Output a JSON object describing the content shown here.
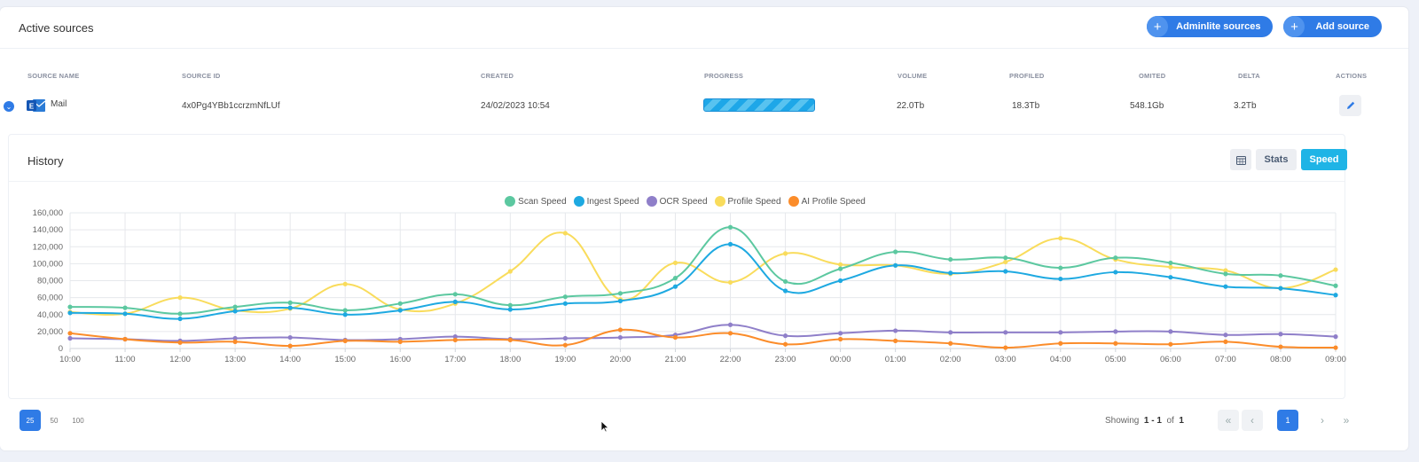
{
  "header": {
    "title": "Active sources",
    "adminlite_label": "Adminlite sources",
    "add_label": "Add source"
  },
  "table": {
    "columns": [
      "SOURCE NAME",
      "SOURCE ID",
      "CREATED",
      "PROGRESS",
      "VOLUME",
      "PROFILED",
      "OMITED",
      "DELTA",
      "ACTIONS"
    ],
    "rows": [
      {
        "name": "Mail",
        "id": "4x0Pg4YBb1ccrzmNfLUf",
        "created": "24/02/2023 10:54",
        "progress": 1.0,
        "volume": "22.0Tb",
        "profiled": "18.3Tb",
        "omited": "548.1Gb",
        "delta": "3.2Tb"
      }
    ]
  },
  "history": {
    "title": "History",
    "stats_label": "Stats",
    "speed_label": "Speed",
    "active_view": "Speed"
  },
  "chart_data": {
    "type": "line",
    "x": [
      "10:00",
      "11:00",
      "12:00",
      "13:00",
      "14:00",
      "15:00",
      "16:00",
      "17:00",
      "18:00",
      "19:00",
      "20:00",
      "21:00",
      "22:00",
      "23:00",
      "00:00",
      "01:00",
      "02:00",
      "03:00",
      "04:00",
      "05:00",
      "06:00",
      "07:00",
      "08:00",
      "09:00"
    ],
    "ylim": [
      0,
      160000
    ],
    "yticks": [
      "0",
      "20,000",
      "40,000",
      "60,000",
      "80,000",
      "100,000",
      "120,000",
      "140,000",
      "160,000"
    ],
    "grid": true,
    "legend_position": "top-center",
    "series": [
      {
        "name": "Scan Speed",
        "color": "#5cc8a0",
        "values": [
          49000,
          48000,
          41000,
          49000,
          54000,
          45000,
          53000,
          64000,
          51000,
          61000,
          65000,
          83000,
          143000,
          79000,
          94000,
          114000,
          105000,
          107000,
          95000,
          107000,
          101000,
          88000,
          86000,
          74000
        ]
      },
      {
        "name": "Ingest Speed",
        "color": "#1ea9e1",
        "values": [
          42000,
          41000,
          35000,
          44000,
          48000,
          40000,
          45000,
          55000,
          46000,
          53000,
          56000,
          73000,
          123000,
          68000,
          80000,
          98000,
          89000,
          91000,
          82000,
          90000,
          84000,
          73000,
          71000,
          63000
        ]
      },
      {
        "name": "OCR Speed",
        "color": "#8f7fc9",
        "values": [
          12000,
          11000,
          9000,
          12000,
          13000,
          10000,
          11000,
          14000,
          11000,
          12000,
          13000,
          16000,
          28000,
          15000,
          18000,
          21000,
          19000,
          19000,
          19000,
          20000,
          20000,
          16000,
          17000,
          14000
        ]
      },
      {
        "name": "Profile Speed",
        "color": "#f9dc5c",
        "values": [
          43000,
          41000,
          60000,
          45000,
          47000,
          76000,
          46000,
          53000,
          91000,
          136000,
          58000,
          101000,
          78000,
          112000,
          99000,
          98000,
          88000,
          102000,
          130000,
          105000,
          96000,
          92000,
          71000,
          93000
        ]
      },
      {
        "name": "AI Profile Speed",
        "color": "#fb8c2a",
        "values": [
          18000,
          11000,
          7000,
          8000,
          3000,
          9000,
          8000,
          10000,
          10000,
          4000,
          22000,
          13000,
          18000,
          5000,
          11000,
          9000,
          6000,
          1000,
          6000,
          6000,
          5000,
          8000,
          2000,
          1000
        ]
      }
    ]
  },
  "pagination": {
    "per_page": [
      "25",
      "50",
      "100"
    ],
    "showing_label": "Showing",
    "range": "1 - 1",
    "of_label": "of",
    "total": "1",
    "current_page": "1"
  }
}
